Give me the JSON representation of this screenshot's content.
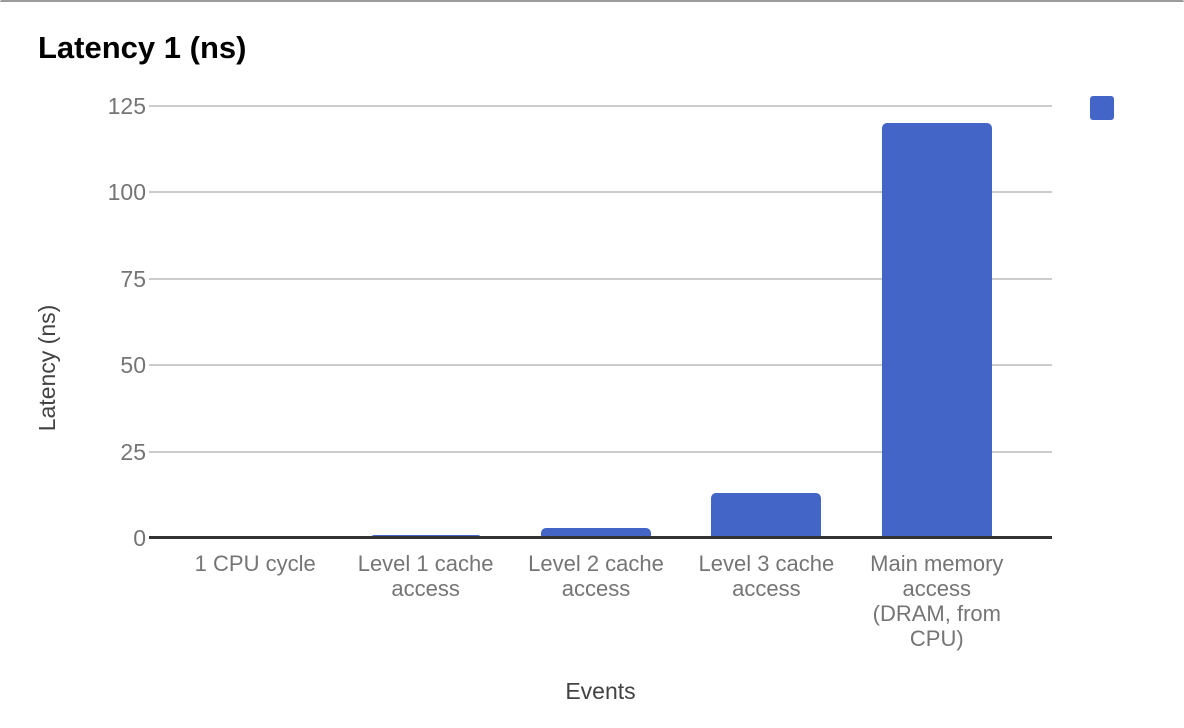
{
  "chart_data": {
    "type": "bar",
    "title": "Latency 1 (ns)",
    "xlabel": "Events",
    "ylabel": "Latency (ns)",
    "categories": [
      "1 CPU cycle",
      "Level 1 cache access",
      "Level 2 cache access",
      "Level 3 cache access",
      "Main memory access (DRAM, from CPU)"
    ],
    "category_lines": [
      [
        "1 CPU cycle"
      ],
      [
        "Level 1 cache",
        "access"
      ],
      [
        "Level 2 cache",
        "access"
      ],
      [
        "Level 3 cache",
        "access"
      ],
      [
        "Main memory",
        "access",
        "(DRAM, from",
        "CPU)"
      ]
    ],
    "values": [
      0.3,
      0.9,
      2.8,
      12.9,
      120
    ],
    "ylim": [
      0,
      125
    ],
    "yticks": [
      0,
      25,
      50,
      75,
      100,
      125
    ],
    "grid": true,
    "legend": {
      "position": "top-right",
      "label": "",
      "swatch_color": "#4365c7"
    },
    "colors": {
      "bar": "#4365c7",
      "gridline": "#cccccc",
      "axis_line": "#333333",
      "tick_label": "#757575",
      "category_label": "#757575",
      "axis_title": "#424242",
      "title": "#000000",
      "window_edge": "#9b9b9b"
    }
  }
}
